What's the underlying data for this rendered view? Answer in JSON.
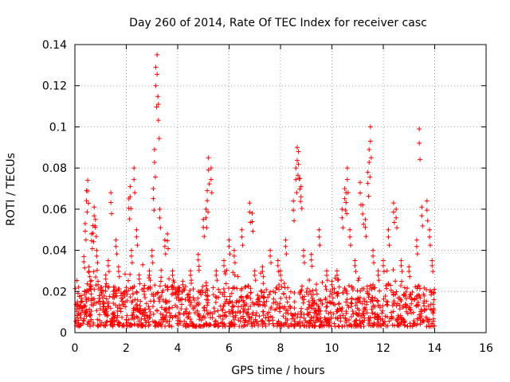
{
  "chart_data": {
    "type": "scatter",
    "title": "Day 260 of 2014, Rate Of TEC Index for receiver casc",
    "xlabel": "GPS time / hours",
    "ylabel": "ROTI / TECUs",
    "xlim": [
      0,
      16
    ],
    "ylim": [
      0,
      0.14
    ],
    "xticks": [
      0,
      2,
      4,
      6,
      8,
      10,
      12,
      14,
      16
    ],
    "xtick_labels": [
      "0",
      "2",
      "4",
      "6",
      "8",
      "10",
      "12",
      "14",
      "16"
    ],
    "yticks": [
      0,
      0.02,
      0.04,
      0.06,
      0.08,
      0.1,
      0.12,
      0.14
    ],
    "ytick_labels": [
      "0",
      "0.02",
      "0.04",
      "0.06",
      "0.08",
      "0.1",
      "0.12",
      "0.14"
    ],
    "grid": true,
    "marker": "plus",
    "color": "#ff0000",
    "series": [
      {
        "name": "ROTI",
        "x": [
          0.1,
          0.25,
          0.35,
          0.4,
          0.45,
          0.5,
          0.55,
          0.6,
          0.65,
          0.7,
          0.75,
          0.8,
          0.85,
          0.9,
          0.95,
          1.0,
          1.1,
          1.2,
          1.3,
          1.4,
          1.5,
          1.6,
          1.7,
          1.8,
          2.0,
          2.1,
          2.15,
          2.2,
          2.3,
          2.4,
          2.5,
          2.7,
          2.9,
          3.0,
          3.05,
          3.1,
          3.15,
          3.2,
          3.25,
          3.3,
          3.5,
          3.6,
          3.8,
          4.0,
          4.2,
          4.5,
          4.8,
          5.0,
          5.1,
          5.15,
          5.2,
          5.3,
          5.5,
          5.8,
          6.0,
          6.2,
          6.5,
          6.8,
          6.9,
          7.0,
          7.3,
          7.6,
          7.9,
          8.0,
          8.2,
          8.5,
          8.6,
          8.65,
          8.7,
          8.75,
          8.8,
          8.9,
          9.2,
          9.5,
          9.8,
          10.0,
          10.2,
          10.4,
          10.5,
          10.55,
          10.6,
          10.7,
          10.9,
          11.1,
          11.2,
          11.3,
          11.4,
          11.45,
          11.5,
          11.6,
          11.8,
          12.0,
          12.2,
          12.4,
          12.5,
          12.7,
          13.0,
          13.3,
          13.4,
          13.5,
          13.7,
          13.8,
          13.9
        ],
        "y": [
          0.015,
          0.018,
          0.037,
          0.053,
          0.069,
          0.074,
          0.032,
          0.025,
          0.048,
          0.052,
          0.061,
          0.055,
          0.04,
          0.025,
          0.018,
          0.022,
          0.015,
          0.028,
          0.035,
          0.068,
          0.02,
          0.045,
          0.032,
          0.018,
          0.022,
          0.065,
          0.071,
          0.04,
          0.08,
          0.05,
          0.028,
          0.02,
          0.03,
          0.04,
          0.07,
          0.089,
          0.129,
          0.135,
          0.111,
          0.06,
          0.045,
          0.048,
          0.03,
          0.02,
          0.025,
          0.03,
          0.038,
          0.055,
          0.06,
          0.069,
          0.085,
          0.08,
          0.03,
          0.035,
          0.045,
          0.04,
          0.05,
          0.063,
          0.058,
          0.03,
          0.032,
          0.04,
          0.035,
          0.03,
          0.045,
          0.064,
          0.08,
          0.09,
          0.088,
          0.075,
          0.071,
          0.04,
          0.038,
          0.05,
          0.03,
          0.025,
          0.03,
          0.06,
          0.07,
          0.068,
          0.08,
          0.05,
          0.035,
          0.073,
          0.062,
          0.055,
          0.078,
          0.089,
          0.1,
          0.04,
          0.03,
          0.035,
          0.05,
          0.063,
          0.06,
          0.035,
          0.032,
          0.045,
          0.099,
          0.061,
          0.064,
          0.05,
          0.035
        ]
      }
    ],
    "background_band": {
      "x_range": [
        0,
        14
      ],
      "y_range": [
        0.003,
        0.023
      ],
      "description": "dense cluster of low ROTI values"
    }
  }
}
